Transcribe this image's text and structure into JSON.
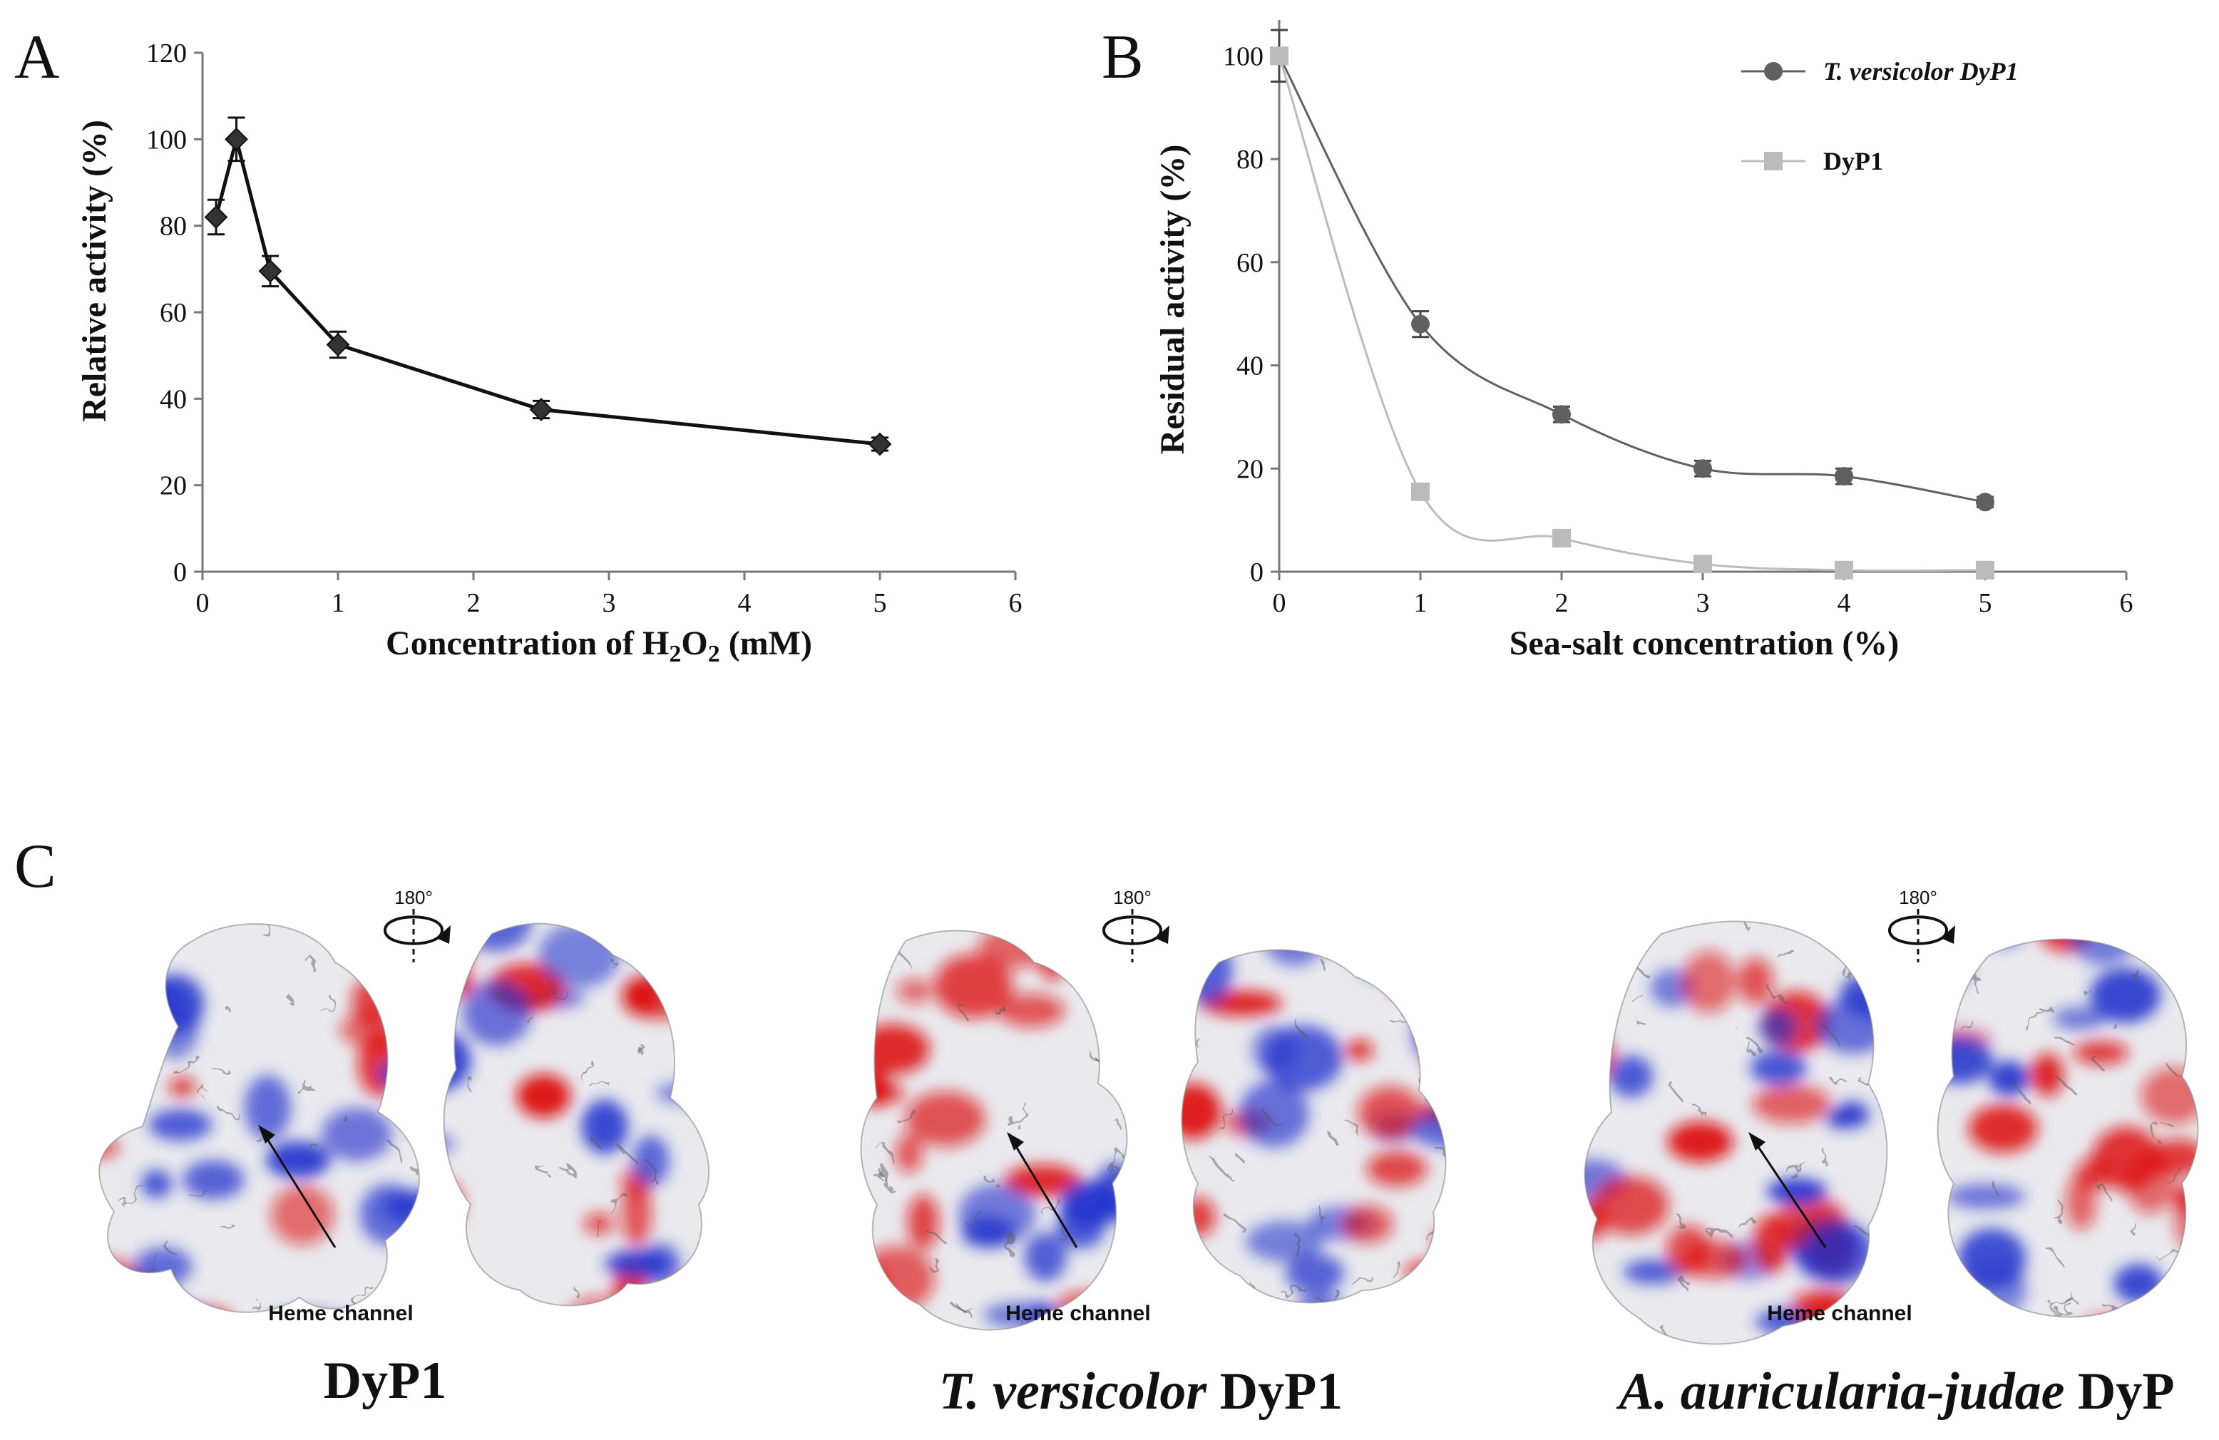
{
  "panels": {
    "a": "A",
    "b": "B",
    "c": "C"
  },
  "chart_data": [
    {
      "type": "line",
      "panel": "A",
      "xlabel": "Concentration of H2O2 (mM)",
      "ylabel": "Relative activity (%)",
      "xlim": [
        0,
        6
      ],
      "ylim": [
        0,
        120
      ],
      "xticks": [
        0,
        1,
        2,
        3,
        4,
        5,
        6
      ],
      "yticks": [
        0,
        20,
        40,
        60,
        80,
        100,
        120
      ],
      "grid": false,
      "series": [
        {
          "color": "#111111",
          "marker": "diamond",
          "x": [
            0.1,
            0.25,
            0.5,
            1,
            2.5,
            5
          ],
          "y": [
            82,
            100,
            69.5,
            52.5,
            37.5,
            29.5
          ],
          "err": [
            4,
            5,
            3.5,
            3,
            2,
            1.5
          ]
        }
      ]
    },
    {
      "type": "line",
      "panel": "B",
      "xlabel": "Sea-salt concentration (%)",
      "ylabel": "Residual activity (%)",
      "xlim": [
        0,
        6
      ],
      "ylim": [
        0,
        110
      ],
      "xticks": [
        0,
        1,
        2,
        3,
        4,
        5,
        6
      ],
      "yticks": [
        0,
        20,
        40,
        60,
        80,
        100
      ],
      "grid": false,
      "legend": "top-right",
      "series": [
        {
          "name": "T. versicolor DyP1",
          "name_italic": true,
          "color": "#606060",
          "marker": "circle",
          "x": [
            0,
            1,
            2,
            3,
            4,
            5
          ],
          "y": [
            100,
            48,
            30.5,
            20,
            18.5,
            13.5
          ],
          "err": [
            5,
            2.5,
            1.5,
            1.5,
            1.5,
            1
          ]
        },
        {
          "name": "DyP1",
          "name_italic": false,
          "color": "#bbbbbb",
          "marker": "square",
          "x": [
            0,
            1,
            2,
            3,
            4,
            5
          ],
          "y": [
            100,
            15.5,
            6.5,
            1.5,
            0.3,
            0.3
          ],
          "err": [
            0,
            0,
            0,
            0,
            0,
            0
          ]
        }
      ]
    }
  ],
  "structures": {
    "rotation_label": "180°",
    "heme_label": "Heme channel",
    "items": [
      {
        "title": "DyP1",
        "title_italic": "",
        "title_plain": "DyP1"
      },
      {
        "title_italic": "T. versicolor",
        "title_plain": " DyP1"
      },
      {
        "title_italic": "A. auricularia-judae",
        "title_plain": " DyP"
      }
    ],
    "colors": {
      "positive": "#2233cc",
      "negative": "#dd1111",
      "neutral": "#e9e9ee"
    }
  }
}
